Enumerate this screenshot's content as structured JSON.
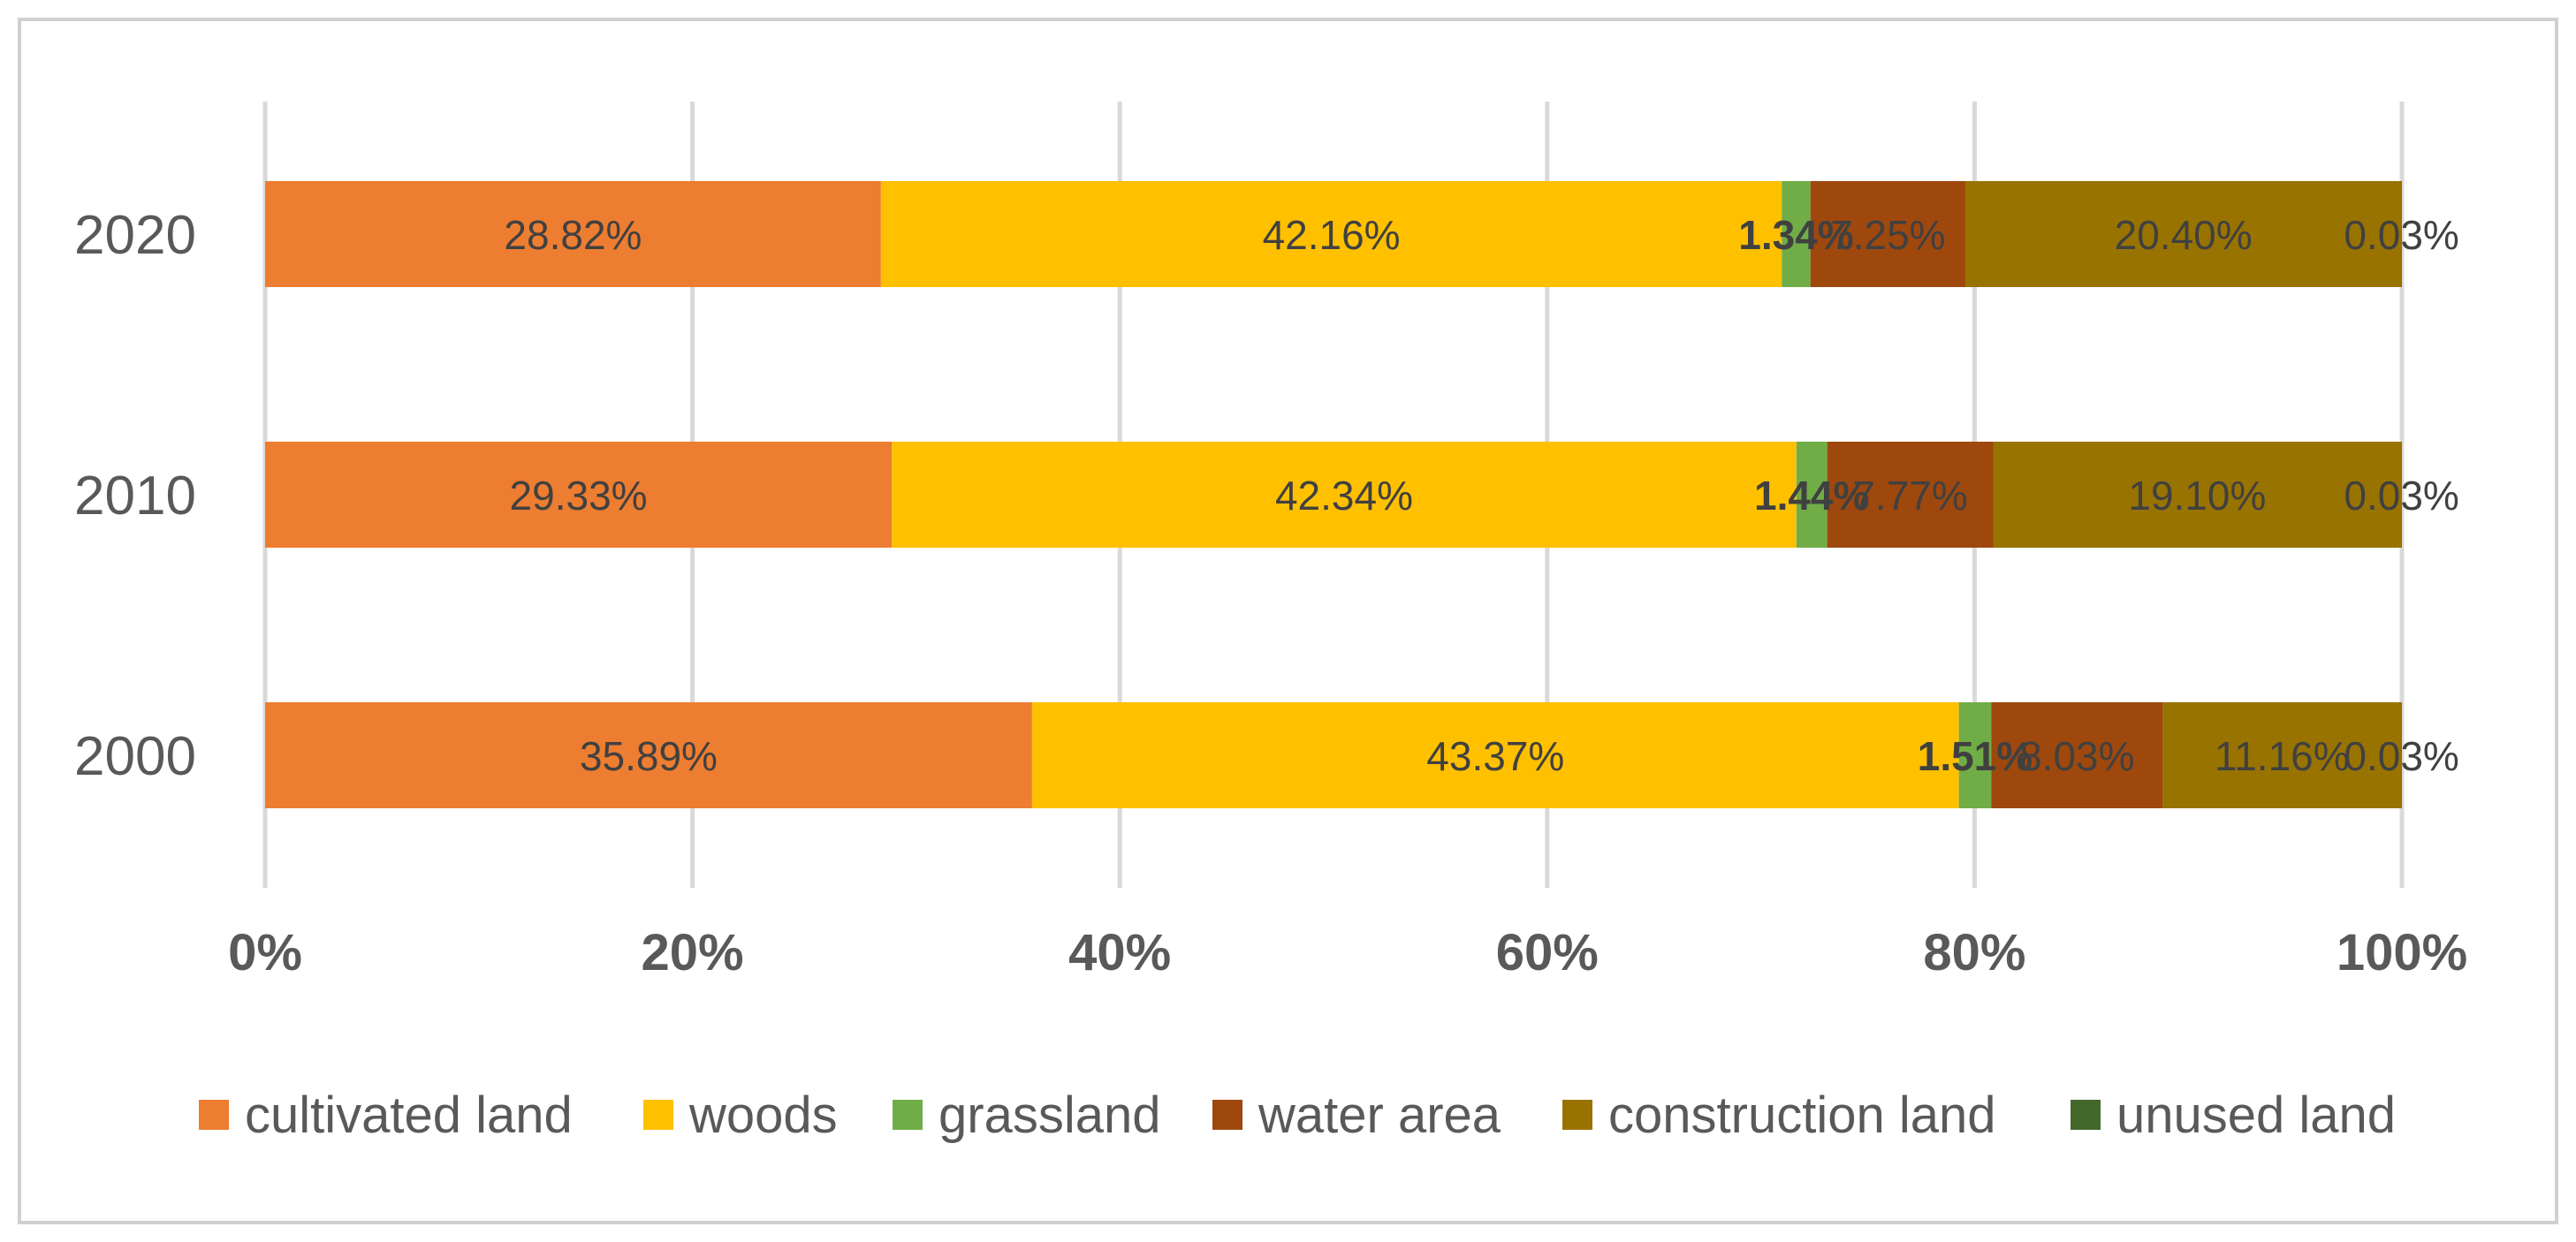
{
  "chart_data": {
    "type": "bar",
    "orientation": "horizontal",
    "stacked": "percent",
    "categories": [
      "2020",
      "2010",
      "2000"
    ],
    "series": [
      {
        "name": "cultivated land",
        "color": "#ED7D31",
        "values": [
          28.82,
          29.33,
          35.89
        ],
        "labels": [
          "28.82%",
          "29.33%",
          "35.89%"
        ],
        "label_bold": false
      },
      {
        "name": "woods",
        "color": "#FFC000",
        "values": [
          42.16,
          42.34,
          43.37
        ],
        "labels": [
          "42.16%",
          "42.34%",
          "43.37%"
        ],
        "label_bold": false
      },
      {
        "name": "grassland",
        "color": "#70AD47",
        "values": [
          1.34,
          1.44,
          1.51
        ],
        "labels": [
          "1.34%",
          "1.44%",
          "1.51%"
        ],
        "label_bold": true
      },
      {
        "name": "water area",
        "color": "#9E480E",
        "values": [
          7.25,
          7.77,
          8.03
        ],
        "labels": [
          "7.25%",
          "7.77%",
          "8.03%"
        ],
        "label_bold": false
      },
      {
        "name": "construction land",
        "color": "#997300",
        "values": [
          20.4,
          19.1,
          11.16
        ],
        "labels": [
          "20.40%",
          "19.10%",
          "11.16%"
        ],
        "label_bold": false
      },
      {
        "name": "unused land",
        "color": "#43682B",
        "values": [
          0.03,
          0.03,
          0.03
        ],
        "labels": [
          "0.03%",
          "0.03%",
          "0.03%"
        ],
        "label_bold": false
      }
    ],
    "x_ticks": [
      "0%",
      "20%",
      "40%",
      "60%",
      "80%",
      "100%"
    ],
    "xlim": [
      0,
      100
    ],
    "grid": true,
    "legend": "bottom",
    "title": "",
    "xlabel": "",
    "ylabel": ""
  }
}
